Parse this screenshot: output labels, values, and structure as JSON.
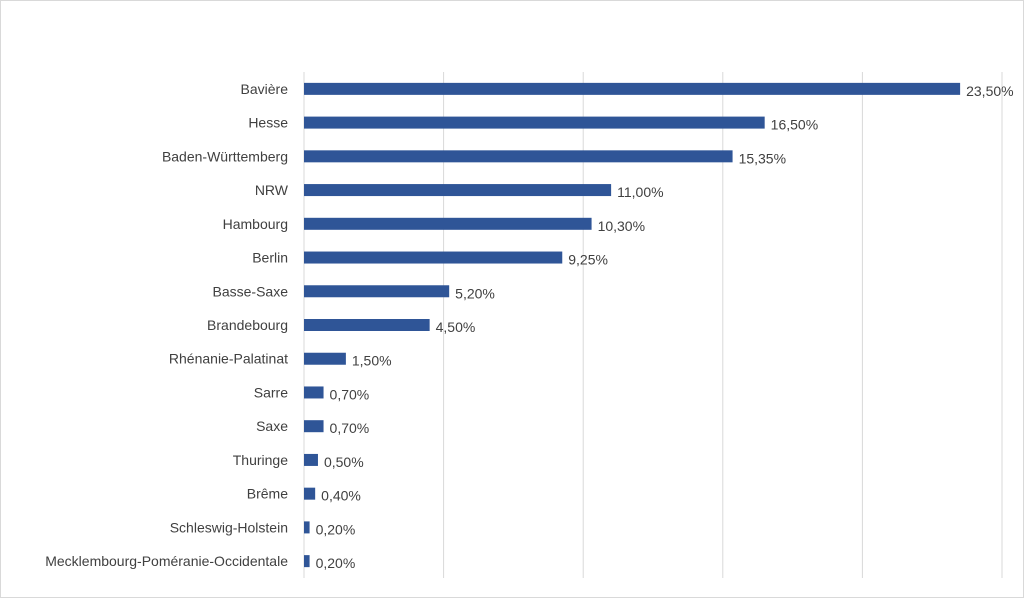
{
  "chart_data": {
    "type": "bar",
    "orientation": "horizontal",
    "title": "",
    "xlabel": "",
    "ylabel": "",
    "categories": [
      "Bavière",
      "Hesse",
      "Baden-Württemberg",
      "NRW",
      "Hambourg",
      "Berlin",
      "Basse-Saxe",
      "Brandebourg",
      "Rhénanie-Palatinat",
      "Sarre",
      "Saxe",
      "Thuringe",
      "Brême",
      "Schleswig-Holstein",
      "Mecklembourg-Poméranie-Occidentale"
    ],
    "values": [
      23.5,
      16.5,
      15.35,
      11.0,
      10.3,
      9.25,
      5.2,
      4.5,
      1.5,
      0.7,
      0.7,
      0.5,
      0.4,
      0.2,
      0.2
    ],
    "data_labels": [
      "23,50%",
      "16,50%",
      "15,35%",
      "11,00%",
      "10,30%",
      "9,25%",
      "5,20%",
      "4,50%",
      "1,50%",
      "0,70%",
      "0,70%",
      "0,50%",
      "0,40%",
      "0,20%",
      "0,20%"
    ],
    "xlim": [
      0,
      25
    ],
    "gridlines_every": 5,
    "grid": true,
    "legend": "none",
    "bar_color": "#2f5597"
  }
}
